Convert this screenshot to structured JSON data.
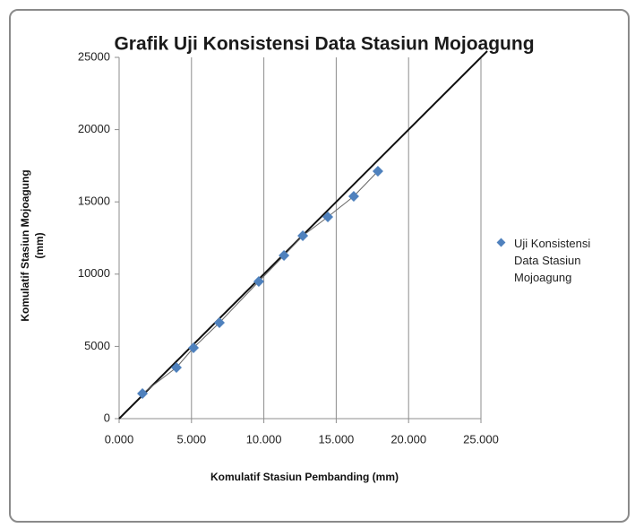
{
  "chart_data": {
    "type": "scatter",
    "title": "Grafik Uji Konsistensi Data Stasiun Mojoagung",
    "x_label": "Komulatif Stasiun Pembanding (mm)",
    "y_label": "Komulatif Stasiun Mojoagung (mm)",
    "series": [
      {
        "name": "Uji Konsistensi Data Stasiun Mojoagung",
        "color": "#4f81bd",
        "x": [
          1.61,
          3.96,
          5.14,
          6.93,
          9.65,
          11.39,
          12.69,
          14.42,
          16.21,
          17.88
        ],
        "values": [
          1737,
          3536,
          4901,
          6638,
          9491,
          11290,
          12655,
          13958,
          15385,
          17122
        ]
      }
    ],
    "xlim": [
      0,
      25
    ],
    "xticks": [
      {
        "value": 0,
        "label": "0.000"
      },
      {
        "value": 5,
        "label": "5.000"
      },
      {
        "value": 10,
        "label": "10.000"
      },
      {
        "value": 15,
        "label": "15.000"
      },
      {
        "value": 20,
        "label": "20.000"
      },
      {
        "value": 25,
        "label": "25.000"
      }
    ],
    "ylim": [
      0,
      25000
    ],
    "yticks": [
      0,
      5000,
      10000,
      15000,
      20000,
      25000
    ],
    "grid": "x",
    "legend": "right"
  }
}
